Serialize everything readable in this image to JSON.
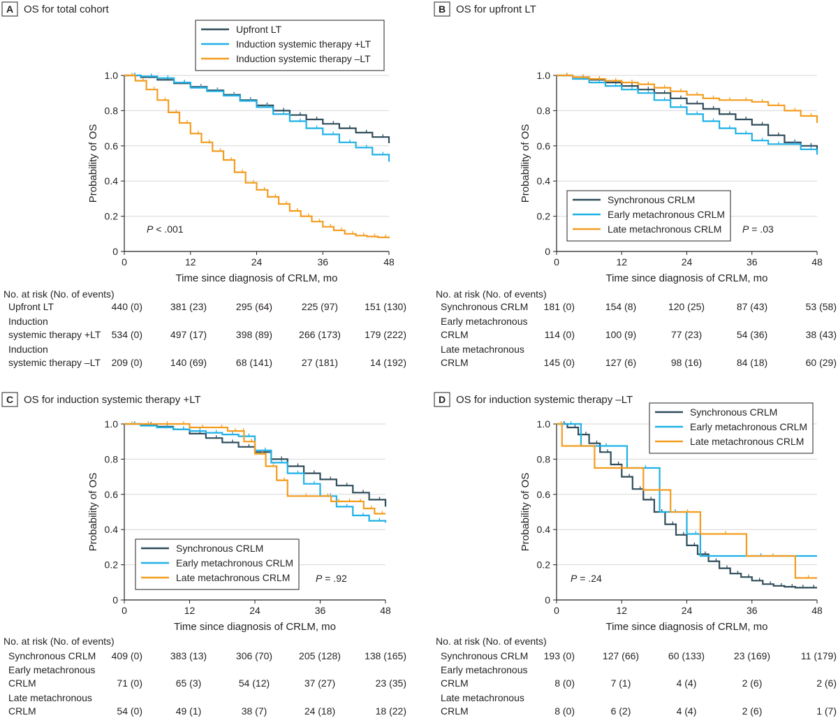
{
  "colors": {
    "dark": "#2e4c5a",
    "blue": "#1fb1e6",
    "orange": "#f39c1e",
    "grid": "#d7d7d7",
    "axis": "#231f20"
  },
  "chart_data": [
    {
      "type": "line",
      "panel": "A",
      "title": "OS for total cohort",
      "xlabel": "Time since diagnosis of CRLM, mo",
      "ylabel": "Probability of OS",
      "xlim": [
        0,
        48
      ],
      "ylim": [
        0,
        1
      ],
      "xticks": [
        "0",
        "12",
        "24",
        "36",
        "48"
      ],
      "yticks": [
        "0",
        "0.2",
        "0.4",
        "0.6",
        "0.8",
        "1.0"
      ],
      "grid": true,
      "legend_position": "top",
      "pvalue_label": "P",
      "pvalue_rest": " < .001",
      "pvalue_side": "left",
      "series": [
        {
          "name": "Upfront LT",
          "color": "#2e4c5a",
          "x": [
            0,
            3,
            6,
            9,
            12,
            15,
            18,
            21,
            24,
            27,
            30,
            33,
            36,
            39,
            42,
            45,
            48
          ],
          "y": [
            1.0,
            0.99,
            0.975,
            0.955,
            0.935,
            0.915,
            0.89,
            0.86,
            0.83,
            0.8,
            0.775,
            0.75,
            0.725,
            0.7,
            0.675,
            0.65,
            0.615
          ]
        },
        {
          "name": "Induction systemic therapy +LT",
          "color": "#1fb1e6",
          "x": [
            0,
            3,
            6,
            9,
            12,
            15,
            18,
            21,
            24,
            27,
            30,
            33,
            36,
            39,
            42,
            45,
            48
          ],
          "y": [
            1.0,
            0.995,
            0.985,
            0.96,
            0.93,
            0.91,
            0.885,
            0.855,
            0.82,
            0.78,
            0.74,
            0.7,
            0.665,
            0.62,
            0.59,
            0.55,
            0.51
          ]
        },
        {
          "name": "Induction systemic therapy –LT",
          "color": "#f39c1e",
          "x": [
            0,
            2,
            4,
            6,
            8,
            10,
            12,
            14,
            16,
            18,
            20,
            22,
            24,
            26,
            28,
            30,
            32,
            34,
            36,
            38,
            40,
            42,
            44,
            46,
            48
          ],
          "y": [
            1.0,
            0.97,
            0.92,
            0.86,
            0.79,
            0.73,
            0.67,
            0.62,
            0.57,
            0.52,
            0.45,
            0.39,
            0.35,
            0.31,
            0.27,
            0.23,
            0.2,
            0.17,
            0.14,
            0.12,
            0.1,
            0.09,
            0.085,
            0.08,
            0.075
          ]
        }
      ],
      "risk_table": {
        "header": "No. at risk (No. of events)",
        "rows": [
          {
            "label_lines": [
              "Upfront LT"
            ],
            "values": [
              "440 (0)",
              "381 (23)",
              "295 (64)",
              "225 (97)",
              "151 (130)"
            ]
          },
          {
            "label_lines": [
              "Induction",
              "systemic therapy +LT"
            ],
            "values": [
              "534 (0)",
              "497 (17)",
              "398 (89)",
              "266 (173)",
              "179 (222)"
            ]
          },
          {
            "label_lines": [
              "Induction",
              "systemic therapy –LT"
            ],
            "values": [
              "209 (0)",
              "140 (69)",
              "68 (141)",
              "27 (181)",
              "14 (192)"
            ]
          }
        ]
      }
    },
    {
      "type": "line",
      "panel": "B",
      "title": "OS for upfront LT",
      "xlabel": "Time since diagnosis of CRLM, mo",
      "ylabel": "Probability of OS",
      "xlim": [
        0,
        48
      ],
      "ylim": [
        0,
        1
      ],
      "xticks": [
        "0",
        "12",
        "24",
        "36",
        "48"
      ],
      "yticks": [
        "0",
        "0.2",
        "0.4",
        "0.6",
        "0.8",
        "1.0"
      ],
      "grid": true,
      "legend_position": "bottom-left",
      "pvalue_label": "P",
      "pvalue_rest": " = .03",
      "pvalue_side": "right",
      "series": [
        {
          "name": "Synchronous CRLM",
          "color": "#2e4c5a",
          "x": [
            0,
            3,
            6,
            9,
            12,
            15,
            18,
            21,
            24,
            27,
            30,
            33,
            36,
            39,
            42,
            45,
            48
          ],
          "y": [
            1.0,
            0.99,
            0.975,
            0.96,
            0.94,
            0.92,
            0.9,
            0.87,
            0.84,
            0.81,
            0.78,
            0.75,
            0.72,
            0.66,
            0.62,
            0.6,
            0.57
          ]
        },
        {
          "name": "Early metachronous CRLM",
          "color": "#1fb1e6",
          "x": [
            0,
            3,
            6,
            9,
            12,
            15,
            18,
            21,
            24,
            27,
            30,
            33,
            36,
            39,
            42,
            45,
            48
          ],
          "y": [
            1.0,
            0.98,
            0.96,
            0.94,
            0.92,
            0.9,
            0.86,
            0.82,
            0.78,
            0.74,
            0.7,
            0.67,
            0.63,
            0.61,
            0.61,
            0.58,
            0.55
          ]
        },
        {
          "name": "Late metachronous CRLM",
          "color": "#f39c1e",
          "x": [
            0,
            3,
            6,
            9,
            12,
            15,
            18,
            21,
            24,
            27,
            30,
            33,
            36,
            39,
            42,
            45,
            48
          ],
          "y": [
            1.0,
            0.99,
            0.98,
            0.97,
            0.96,
            0.95,
            0.93,
            0.91,
            0.89,
            0.87,
            0.86,
            0.86,
            0.85,
            0.83,
            0.8,
            0.77,
            0.73
          ]
        }
      ],
      "risk_table": {
        "header": "No. at risk (No. of events)",
        "rows": [
          {
            "label_lines": [
              "Synchronous CRLM"
            ],
            "values": [
              "181 (0)",
              "154 (8)",
              "120 (25)",
              "87 (43)",
              "53 (58)"
            ]
          },
          {
            "label_lines": [
              "Early metachronous",
              "CRLM"
            ],
            "values": [
              "114 (0)",
              "100 (9)",
              "77 (23)",
              "54 (36)",
              "38 (43)"
            ]
          },
          {
            "label_lines": [
              "Late metachronous",
              "CRLM"
            ],
            "values": [
              "145 (0)",
              "127 (6)",
              "98 (16)",
              "84 (18)",
              "60 (29)"
            ]
          }
        ]
      }
    },
    {
      "type": "line",
      "panel": "C",
      "title": "OS for induction systemic therapy +LT",
      "xlabel": "Time since diagnosis of CRLM, mo",
      "ylabel": "Probability of OS",
      "xlim": [
        0,
        48
      ],
      "ylim": [
        0,
        1
      ],
      "xticks": [
        "0",
        "12",
        "24",
        "36",
        "48"
      ],
      "yticks": [
        "0",
        "0.2",
        "0.4",
        "0.6",
        "0.8",
        "1.0"
      ],
      "grid": true,
      "legend_position": "bottom-left",
      "pvalue_label": "P",
      "pvalue_rest": " = .92",
      "pvalue_side": "right",
      "series": [
        {
          "name": "Synchronous CRLM",
          "color": "#2e4c5a",
          "x": [
            0,
            3,
            6,
            9,
            12,
            15,
            18,
            21,
            24,
            27,
            30,
            33,
            36,
            39,
            42,
            45,
            48
          ],
          "y": [
            1.0,
            0.995,
            0.985,
            0.97,
            0.945,
            0.92,
            0.895,
            0.87,
            0.84,
            0.8,
            0.76,
            0.72,
            0.685,
            0.65,
            0.61,
            0.57,
            0.53
          ]
        },
        {
          "name": "Early metachronous CRLM",
          "color": "#1fb1e6",
          "x": [
            0,
            3,
            6,
            9,
            12,
            15,
            18,
            21,
            24,
            27,
            30,
            33,
            36,
            39,
            42,
            45,
            48
          ],
          "y": [
            1.0,
            0.99,
            0.98,
            0.97,
            0.96,
            0.95,
            0.94,
            0.93,
            0.85,
            0.78,
            0.72,
            0.66,
            0.59,
            0.53,
            0.48,
            0.45,
            0.44
          ]
        },
        {
          "name": "Late metachronous CRLM",
          "color": "#f39c1e",
          "x": [
            0,
            2,
            6,
            9,
            12,
            16,
            19,
            21,
            22,
            24,
            26,
            28,
            30,
            36,
            38,
            40,
            42,
            44,
            46,
            48
          ],
          "y": [
            1.0,
            1.0,
            1.0,
            1.0,
            0.98,
            0.98,
            0.96,
            0.96,
            0.9,
            0.83,
            0.76,
            0.68,
            0.59,
            0.59,
            0.56,
            0.56,
            0.56,
            0.52,
            0.49,
            0.49
          ]
        }
      ],
      "risk_table": {
        "header": "No. at risk (No. of events)",
        "rows": [
          {
            "label_lines": [
              "Synchronous CRLM"
            ],
            "values": [
              "409 (0)",
              "383 (13)",
              "306 (70)",
              "205 (128)",
              "138 (165)"
            ]
          },
          {
            "label_lines": [
              "Early metachronous",
              "CRLM"
            ],
            "values": [
              "71 (0)",
              "65 (3)",
              "54 (12)",
              "37 (27)",
              "23 (35)"
            ]
          },
          {
            "label_lines": [
              "Late metachronous",
              "CRLM"
            ],
            "values": [
              "54 (0)",
              "49 (1)",
              "38 (7)",
              "24 (18)",
              "18 (22)"
            ]
          }
        ]
      }
    },
    {
      "type": "line",
      "panel": "D",
      "title": "OS for induction systemic therapy –LT",
      "xlabel": "Time since diagnosis of CRLM, mo",
      "ylabel": "Probability of OS",
      "xlim": [
        0,
        48
      ],
      "ylim": [
        0,
        1
      ],
      "xticks": [
        "0",
        "12",
        "24",
        "36",
        "48"
      ],
      "yticks": [
        "0",
        "0.2",
        "0.4",
        "0.6",
        "0.8",
        "1.0"
      ],
      "grid": true,
      "legend_position": "top-right",
      "pvalue_label": "P",
      "pvalue_rest": " = .24",
      "pvalue_side": "left",
      "series": [
        {
          "name": "Synchronous CRLM",
          "color": "#2e4c5a",
          "x": [
            0,
            2,
            4,
            6,
            8,
            10,
            12,
            14,
            16,
            18,
            20,
            22,
            24,
            26,
            28,
            30,
            32,
            34,
            36,
            38,
            40,
            42,
            44,
            46,
            48
          ],
          "y": [
            1.0,
            0.98,
            0.94,
            0.89,
            0.84,
            0.77,
            0.7,
            0.63,
            0.57,
            0.5,
            0.43,
            0.37,
            0.31,
            0.26,
            0.22,
            0.18,
            0.15,
            0.13,
            0.11,
            0.09,
            0.08,
            0.075,
            0.07,
            0.07,
            0.07
          ]
        },
        {
          "name": "Early metachronous CRLM",
          "color": "#1fb1e6",
          "x": [
            0,
            4.5,
            13,
            19,
            24,
            26.5,
            48
          ],
          "y": [
            1.0,
            0.875,
            0.75,
            0.5,
            0.375,
            0.25,
            0.25
          ]
        },
        {
          "name": "Late metachronous CRLM",
          "color": "#f39c1e",
          "x": [
            0,
            1,
            7,
            16,
            21,
            26.5,
            35,
            44,
            48
          ],
          "y": [
            1.0,
            0.875,
            0.75,
            0.625,
            0.5,
            0.375,
            0.25,
            0.125,
            0.125
          ]
        }
      ],
      "risk_table": {
        "header": "No. at risk (No. of events)",
        "rows": [
          {
            "label_lines": [
              "Synchronous CRLM"
            ],
            "values": [
              "193 (0)",
              "127 (66)",
              "60 (133)",
              "23 (169)",
              "11 (179)"
            ]
          },
          {
            "label_lines": [
              "Early metachronous",
              "CRLM"
            ],
            "values": [
              "8 (0)",
              "7 (1)",
              "4 (4)",
              "2 (6)",
              "2 (6)"
            ]
          },
          {
            "label_lines": [
              "Late metachronous",
              "CRLM"
            ],
            "values": [
              "8 (0)",
              "6 (2)",
              "4 (4)",
              "2 (6)",
              "1 (7)"
            ]
          }
        ]
      }
    }
  ]
}
